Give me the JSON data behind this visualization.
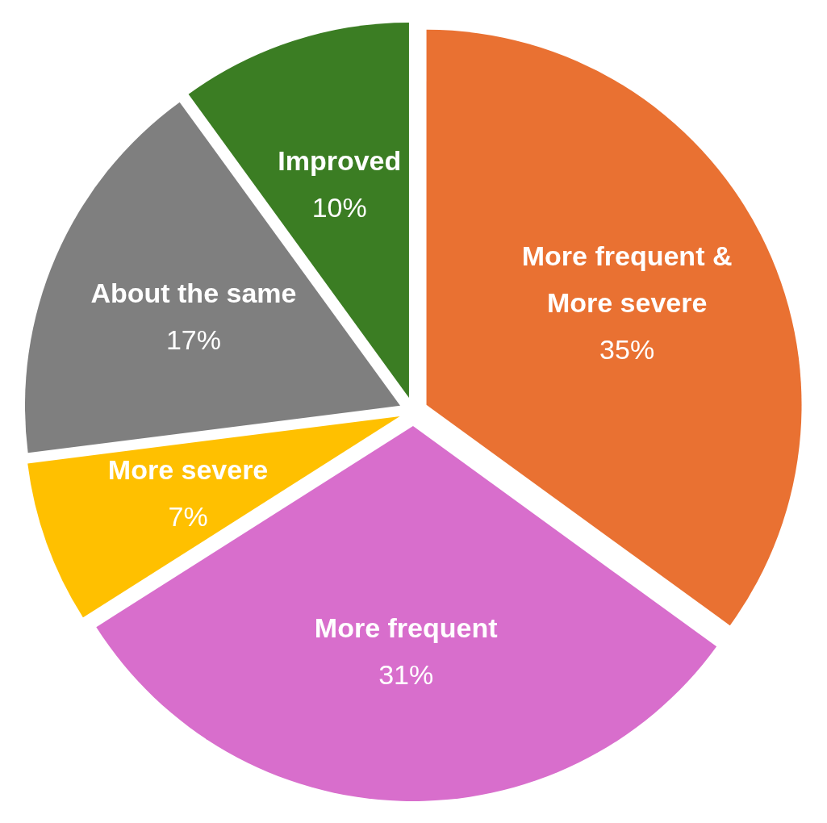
{
  "chart_data": {
    "type": "pie",
    "categories": [
      "More frequent & More severe",
      "More frequent",
      "More severe",
      "About the same",
      "Improved"
    ],
    "values": [
      35,
      31,
      7,
      17,
      10
    ],
    "value_labels": [
      "35%",
      "31%",
      "7%",
      "17%",
      "10%"
    ],
    "colors": [
      "#e97132",
      "#d86ecc",
      "#ffc000",
      "#7f7f7f",
      "#3b7d23"
    ]
  }
}
